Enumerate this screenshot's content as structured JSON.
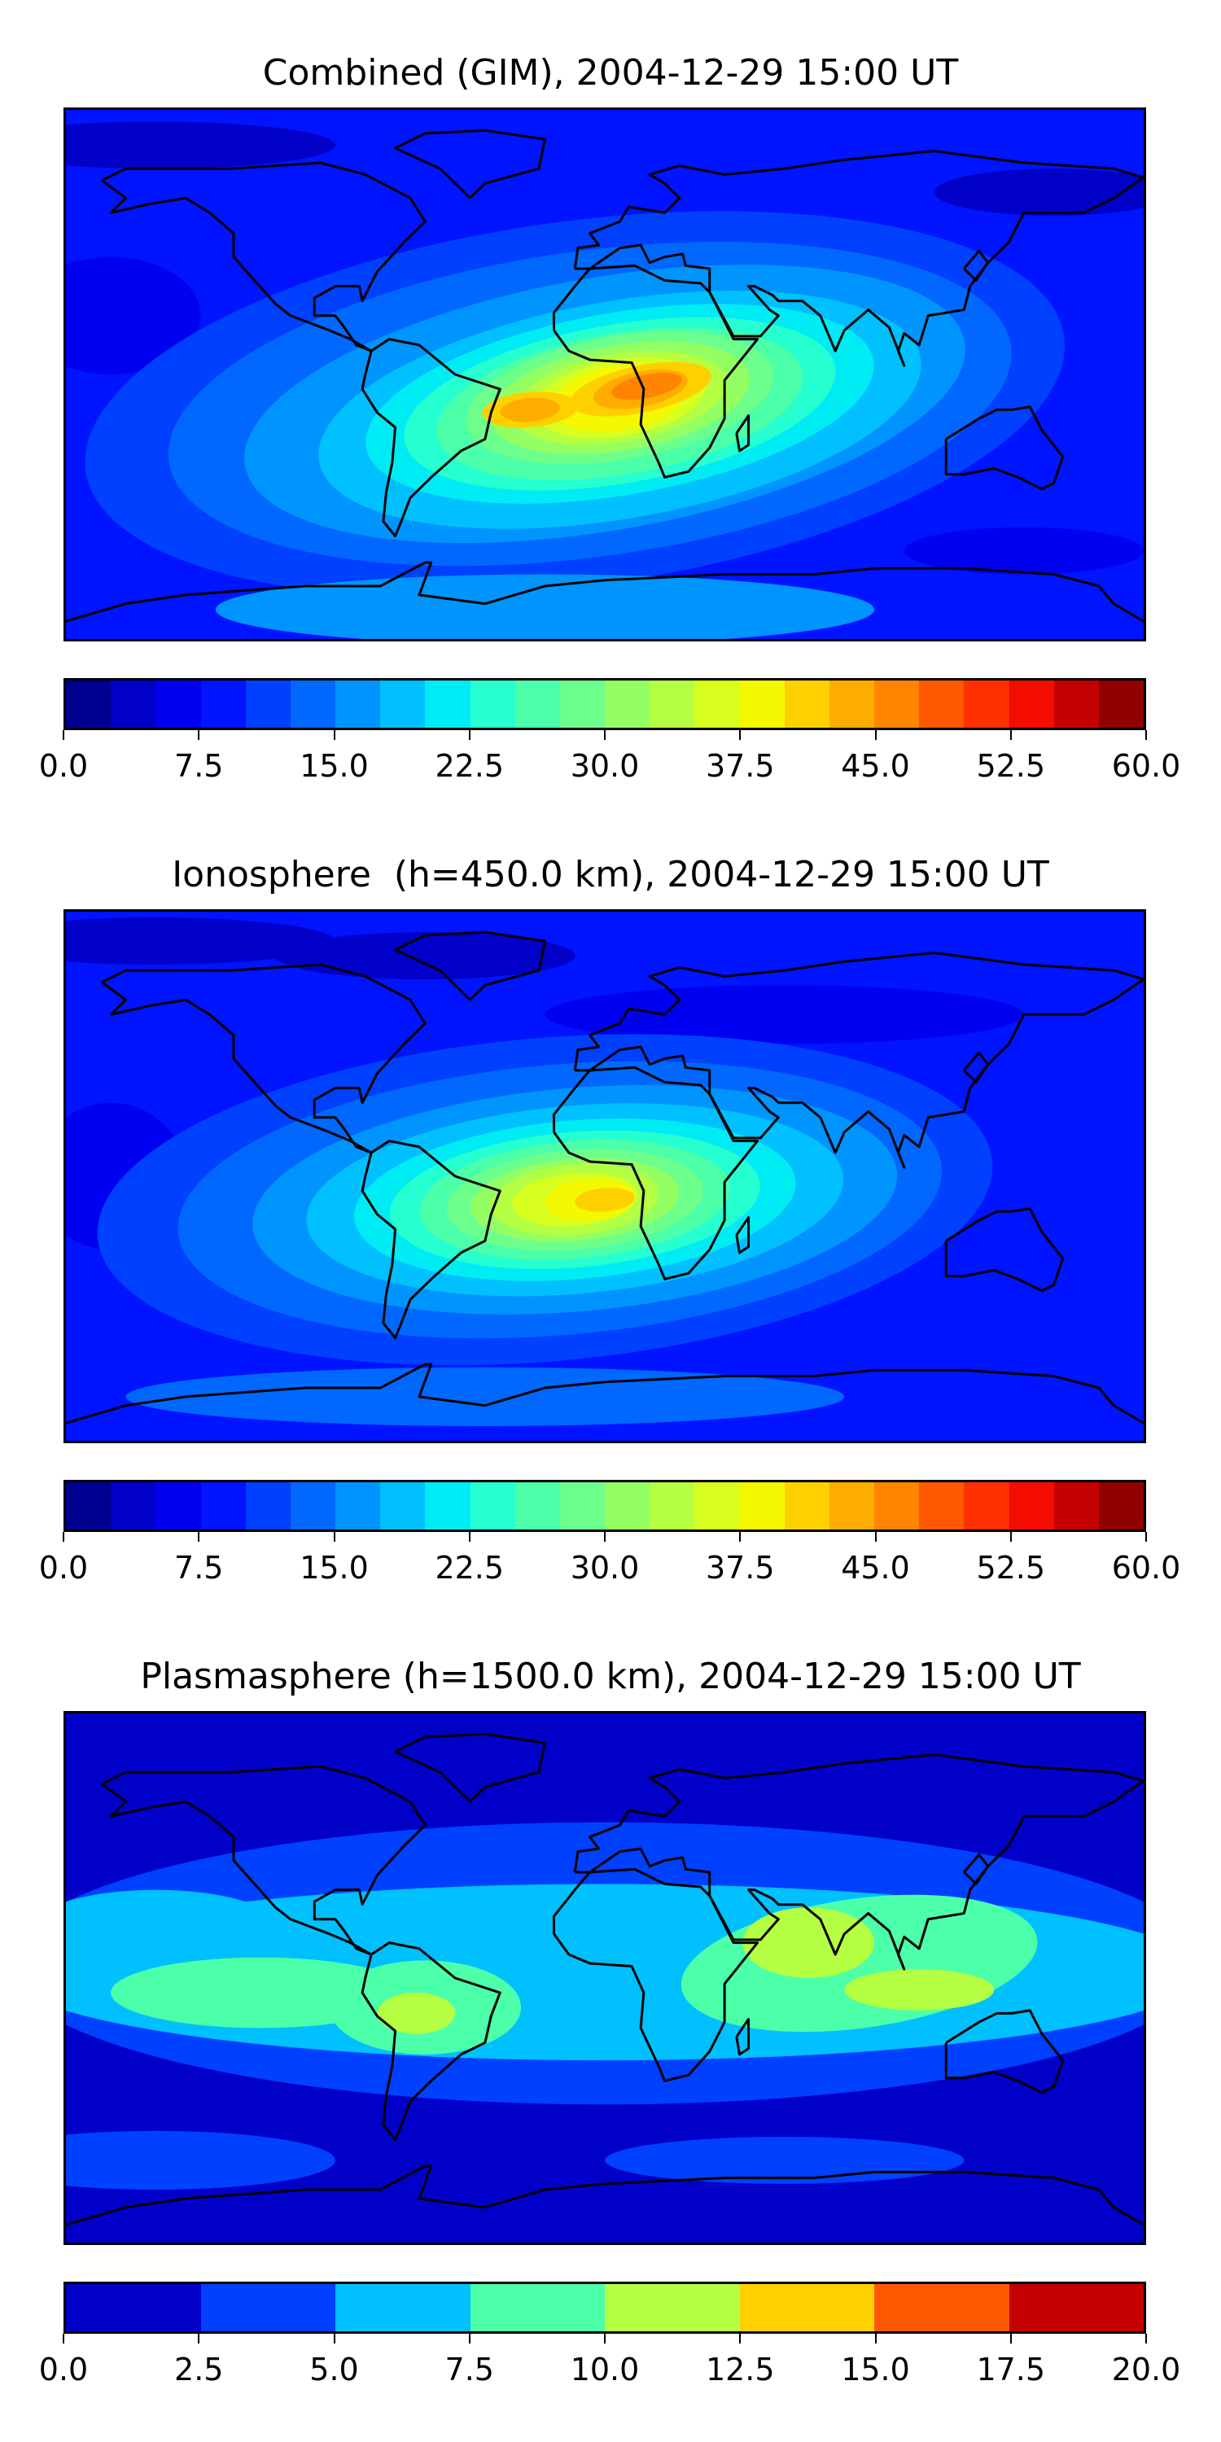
{
  "chart_data": [
    {
      "type": "heatmap",
      "title": "Combined (GIM), 2004-12-29 15:00 UT",
      "map": "global-contour",
      "lon_range": [
        -180,
        180
      ],
      "lat_range": [
        -90,
        90
      ],
      "vmin": 0.0,
      "vmax": 60.0,
      "level_step": 2.5,
      "colorbar_ticks": [
        "0.0",
        "7.5",
        "15.0",
        "22.5",
        "30.0",
        "37.5",
        "45.0",
        "52.5",
        "60.0"
      ],
      "colors": [
        "#000090",
        "#0000c8",
        "#0000f0",
        "#0014ff",
        "#0040ff",
        "#0068ff",
        "#0094ff",
        "#00c0ff",
        "#00ecf4",
        "#26ffd0",
        "#4cffa9",
        "#6cff8c",
        "#94ff62",
        "#b4ff42",
        "#d8ff1e",
        "#f4f800",
        "#ffd000",
        "#ffac00",
        "#ff8400",
        "#ff5800",
        "#ff3000",
        "#f40c00",
        "#c40000",
        "#900000"
      ],
      "max_region": "South Atlantic / central Africa (~45-47.5)"
    },
    {
      "type": "heatmap",
      "title": "Ionosphere  (h=450.0 km), 2004-12-29 15:00 UT",
      "map": "global-contour",
      "lon_range": [
        -180,
        180
      ],
      "lat_range": [
        -90,
        90
      ],
      "vmin": 0.0,
      "vmax": 60.0,
      "level_step": 2.5,
      "colorbar_ticks": [
        "0.0",
        "7.5",
        "15.0",
        "22.5",
        "30.0",
        "37.5",
        "45.0",
        "52.5",
        "60.0"
      ],
      "colors": [
        "#000090",
        "#0000c8",
        "#0000f0",
        "#0014ff",
        "#0040ff",
        "#0068ff",
        "#0094ff",
        "#00c0ff",
        "#00ecf4",
        "#26ffd0",
        "#4cffa9",
        "#6cff8c",
        "#94ff62",
        "#b4ff42",
        "#d8ff1e",
        "#f4f800",
        "#ffd000",
        "#ffac00",
        "#ff8400",
        "#ff5800",
        "#ff3000",
        "#f40c00",
        "#c40000",
        "#900000"
      ],
      "max_region": "central Africa / South Atlantic (~40-42.5)"
    },
    {
      "type": "heatmap",
      "title": "Plasmasphere (h=1500.0 km), 2004-12-29 15:00 UT",
      "map": "global-contour",
      "lon_range": [
        -180,
        180
      ],
      "lat_range": [
        -90,
        90
      ],
      "vmin": 0.0,
      "vmax": 20.0,
      "level_step": 2.5,
      "colorbar_ticks": [
        "0.0",
        "2.5",
        "5.0",
        "7.5",
        "10.0",
        "12.5",
        "15.0",
        "17.5",
        "20.0"
      ],
      "colors": [
        "#0000c8",
        "#0040ff",
        "#00c0ff",
        "#4cffa9",
        "#b4ff42",
        "#ffd000",
        "#ff5800",
        "#c40000"
      ],
      "max_region": "South America, India-Indonesia (~10-12.5)"
    }
  ]
}
